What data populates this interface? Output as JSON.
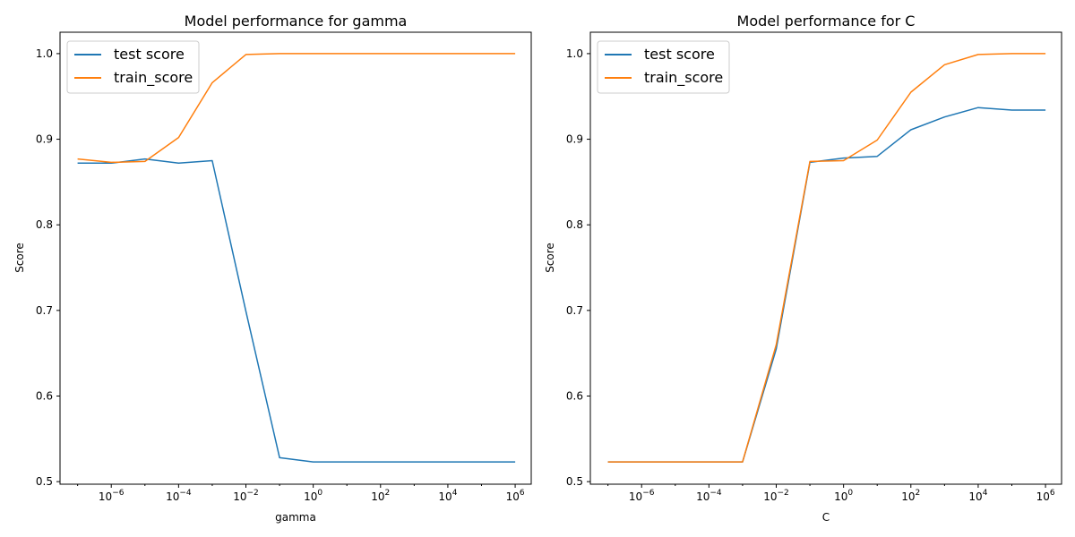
{
  "chart_data": [
    {
      "type": "line",
      "title": "Model performance for gamma",
      "xlabel": "gamma",
      "ylabel": "Score",
      "xscale": "log",
      "x": [
        1e-07,
        1e-06,
        1e-05,
        0.0001,
        0.001,
        0.01,
        0.1,
        1,
        10,
        100,
        1000,
        10000,
        100000,
        1000000
      ],
      "xlim": [
        3e-08,
        3000000.0
      ],
      "ylim": [
        0.497,
        1.025
      ],
      "xticks": [
        {
          "value": 1e-06,
          "base": "10",
          "exp": "−6"
        },
        {
          "value": 0.0001,
          "base": "10",
          "exp": "−4"
        },
        {
          "value": 0.01,
          "base": "10",
          "exp": "−2"
        },
        {
          "value": 1,
          "base": "10",
          "exp": "0"
        },
        {
          "value": 100,
          "base": "10",
          "exp": "2"
        },
        {
          "value": 10000,
          "base": "10",
          "exp": "4"
        },
        {
          "value": 1000000,
          "base": "10",
          "exp": "6"
        }
      ],
      "yticks": [
        {
          "value": 0.5,
          "label": "0.5"
        },
        {
          "value": 0.6,
          "label": "0.6"
        },
        {
          "value": 0.7,
          "label": "0.7"
        },
        {
          "value": 0.8,
          "label": "0.8"
        },
        {
          "value": 0.9,
          "label": "0.9"
        },
        {
          "value": 1.0,
          "label": "1.0"
        }
      ],
      "legend": "top-left",
      "grid": false,
      "series": [
        {
          "name": "test score",
          "color": "#1f77b4",
          "values": [
            0.872,
            0.872,
            0.877,
            0.872,
            0.875,
            0.699,
            0.528,
            0.523,
            0.523,
            0.523,
            0.523,
            0.523,
            0.523,
            0.523
          ]
        },
        {
          "name": "train_score",
          "color": "#ff7f0e",
          "values": [
            0.877,
            0.873,
            0.874,
            0.902,
            0.966,
            0.999,
            1.0,
            1.0,
            1.0,
            1.0,
            1.0,
            1.0,
            1.0,
            1.0
          ]
        }
      ]
    },
    {
      "type": "line",
      "title": "Model performance for C",
      "xlabel": "C",
      "ylabel": "Score",
      "xscale": "log",
      "x": [
        1e-07,
        1e-06,
        1e-05,
        0.0001,
        0.001,
        0.01,
        0.1,
        1,
        10,
        100,
        1000,
        10000,
        100000,
        1000000
      ],
      "xlim": [
        3e-08,
        3000000.0
      ],
      "ylim": [
        0.497,
        1.025
      ],
      "xticks": [
        {
          "value": 1e-06,
          "base": "10",
          "exp": "−6"
        },
        {
          "value": 0.0001,
          "base": "10",
          "exp": "−4"
        },
        {
          "value": 0.01,
          "base": "10",
          "exp": "−2"
        },
        {
          "value": 1,
          "base": "10",
          "exp": "0"
        },
        {
          "value": 100,
          "base": "10",
          "exp": "2"
        },
        {
          "value": 10000,
          "base": "10",
          "exp": "4"
        },
        {
          "value": 1000000,
          "base": "10",
          "exp": "6"
        }
      ],
      "yticks": [
        {
          "value": 0.5,
          "label": "0.5"
        },
        {
          "value": 0.6,
          "label": "0.6"
        },
        {
          "value": 0.7,
          "label": "0.7"
        },
        {
          "value": 0.8,
          "label": "0.8"
        },
        {
          "value": 0.9,
          "label": "0.9"
        },
        {
          "value": 1.0,
          "label": "1.0"
        }
      ],
      "legend": "top-left",
      "grid": false,
      "series": [
        {
          "name": "test score",
          "color": "#1f77b4",
          "values": [
            0.523,
            0.523,
            0.523,
            0.523,
            0.523,
            0.655,
            0.873,
            0.878,
            0.88,
            0.911,
            0.926,
            0.937,
            0.934,
            0.934
          ]
        },
        {
          "name": "train_score",
          "color": "#ff7f0e",
          "values": [
            0.523,
            0.523,
            0.523,
            0.523,
            0.523,
            0.66,
            0.874,
            0.875,
            0.899,
            0.955,
            0.987,
            0.999,
            1.0,
            1.0
          ]
        }
      ]
    }
  ]
}
